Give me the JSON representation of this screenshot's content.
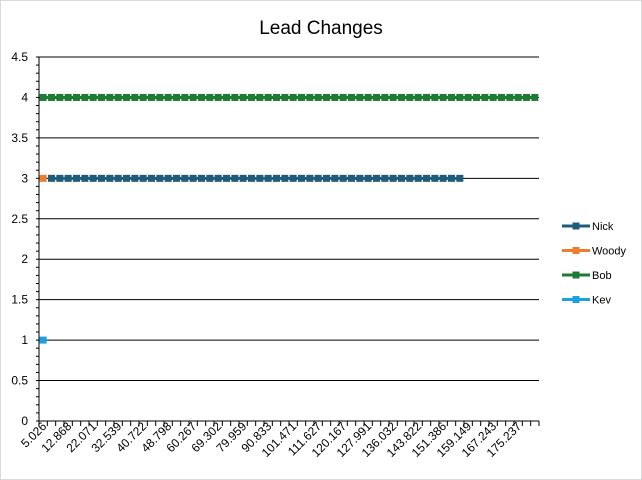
{
  "chart_data": {
    "type": "line",
    "title": "Lead Changes",
    "xlabel": "",
    "ylabel": "",
    "ylim": [
      0,
      4.5
    ],
    "yticks": [
      "0",
      "0.5",
      "1",
      "1.5",
      "2",
      "2.5",
      "3",
      "3.5",
      "4",
      "4.5"
    ],
    "grid": true,
    "legend_position": "right",
    "x_tick_labels": [
      "5.026",
      "12.868",
      "22.071",
      "32.539",
      "40.722",
      "48.798",
      "60.267",
      "69.302",
      "79.959",
      "90.833",
      "101.471",
      "111.627",
      "120.167",
      "127.991",
      "136.032",
      "143.822",
      "151.386",
      "159.149",
      "167.243",
      "175.237"
    ],
    "category_count": 60,
    "series": [
      {
        "name": "Nick",
        "color": "#1f5c7a",
        "start_index": 1,
        "end_index": 50,
        "value": 3
      },
      {
        "name": "Woody",
        "color": "#ed7d31",
        "start_index": 0,
        "end_index": 0,
        "value": 3
      },
      {
        "name": "Bob",
        "color": "#1e7b34",
        "start_index": 0,
        "end_index": 59,
        "value": 4
      },
      {
        "name": "Kev",
        "color": "#1ba1e2",
        "start_index": 0,
        "end_index": 0,
        "value": 1
      }
    ]
  }
}
